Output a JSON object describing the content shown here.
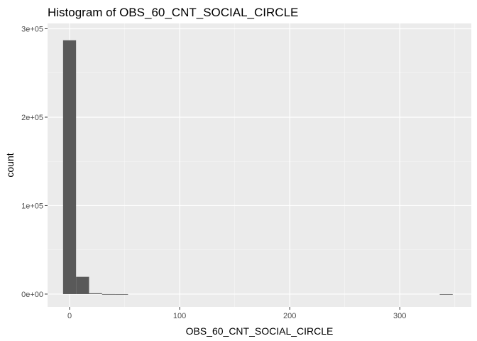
{
  "colors": {
    "panel": "#ebebeb",
    "grid_major": "#ffffff",
    "grid_minor": "#f7f7f7",
    "bar": "#595959",
    "tick": "#333333"
  },
  "chart_data": {
    "type": "bar",
    "subtype": "histogram",
    "title": "Histogram of OBS_60_CNT_SOCIAL_CIRCLE",
    "xlabel": "OBS_60_CNT_SOCIAL_CIRCLE",
    "ylabel": "count",
    "x_ticks": [
      0,
      100,
      200,
      300
    ],
    "x_tick_labels": [
      "0",
      "100",
      "200",
      "300"
    ],
    "y_ticks": [
      0,
      100000,
      200000,
      300000
    ],
    "y_tick_labels": [
      "0e+00",
      "1e+05",
      "2e+05",
      "3e+05"
    ],
    "xlim": [
      -20,
      365
    ],
    "ylim": [
      -14500,
      306000
    ],
    "grid": true,
    "bin_width": 11.8,
    "bins": [
      {
        "x0": -5.9,
        "x1": 5.9,
        "count": 287000
      },
      {
        "x0": 5.9,
        "x1": 17.7,
        "count": 19500
      },
      {
        "x0": 17.7,
        "x1": 29.5,
        "count": 900
      },
      {
        "x0": 29.5,
        "x1": 41.3,
        "count": 30
      },
      {
        "x0": 41.3,
        "x1": 53.1,
        "count": 5
      },
      {
        "x0": 53.1,
        "x1": 64.9,
        "count": 0
      },
      {
        "x0": 64.9,
        "x1": 76.7,
        "count": 0
      },
      {
        "x0": 76.7,
        "x1": 88.5,
        "count": 0
      },
      {
        "x0": 88.5,
        "x1": 100.3,
        "count": 0
      },
      {
        "x0": 100.3,
        "x1": 112.1,
        "count": 0
      },
      {
        "x0": 112.1,
        "x1": 123.9,
        "count": 0
      },
      {
        "x0": 123.9,
        "x1": 135.7,
        "count": 0
      },
      {
        "x0": 135.7,
        "x1": 147.5,
        "count": 0
      },
      {
        "x0": 147.5,
        "x1": 159.3,
        "count": 0
      },
      {
        "x0": 159.3,
        "x1": 171.1,
        "count": 0
      },
      {
        "x0": 171.1,
        "x1": 182.9,
        "count": 0
      },
      {
        "x0": 182.9,
        "x1": 194.7,
        "count": 0
      },
      {
        "x0": 194.7,
        "x1": 206.5,
        "count": 0
      },
      {
        "x0": 206.5,
        "x1": 218.3,
        "count": 0
      },
      {
        "x0": 218.3,
        "x1": 230.1,
        "count": 0
      },
      {
        "x0": 230.1,
        "x1": 241.9,
        "count": 0
      },
      {
        "x0": 241.9,
        "x1": 253.7,
        "count": 0
      },
      {
        "x0": 253.7,
        "x1": 265.5,
        "count": 0
      },
      {
        "x0": 265.5,
        "x1": 277.3,
        "count": 0
      },
      {
        "x0": 277.3,
        "x1": 289.1,
        "count": 0
      },
      {
        "x0": 289.1,
        "x1": 300.9,
        "count": 0
      },
      {
        "x0": 300.9,
        "x1": 312.7,
        "count": 0
      },
      {
        "x0": 312.7,
        "x1": 324.5,
        "count": 0
      },
      {
        "x0": 324.5,
        "x1": 336.3,
        "count": 0
      },
      {
        "x0": 336.3,
        "x1": 348.1,
        "count": 1
      }
    ]
  }
}
